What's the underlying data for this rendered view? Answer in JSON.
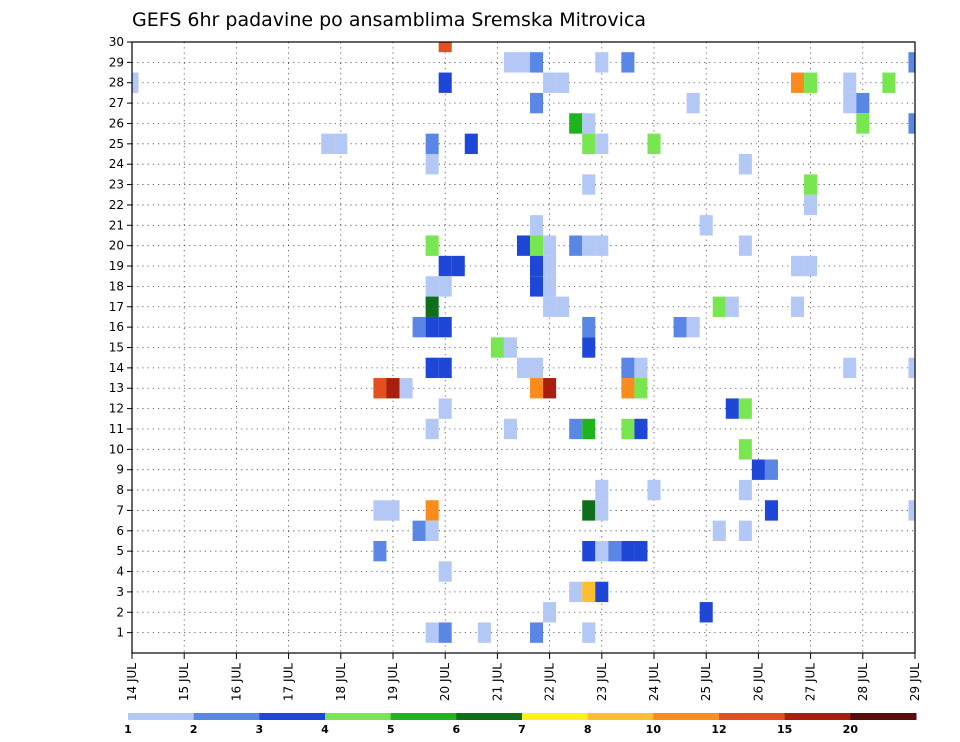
{
  "chart_data": {
    "type": "heatmap",
    "title": "GEFS 6hr padavine po ansamblima Sremska Mitrovica",
    "x_tick_labels": [
      "14 JUL",
      "15 JUL",
      "16 JUL",
      "17 JUL",
      "18 JUL",
      "19 JUL",
      "20 JUL",
      "21 JUL",
      "22 JUL",
      "23 JUL",
      "24 JUL",
      "25 JUL",
      "26 JUL",
      "27 JUL",
      "28 JUL",
      "29 JUL"
    ],
    "x_range_days": [
      14,
      29
    ],
    "y_tick_labels": [
      "1",
      "2",
      "3",
      "4",
      "5",
      "6",
      "7",
      "8",
      "9",
      "10",
      "11",
      "12",
      "13",
      "14",
      "15",
      "16",
      "17",
      "18",
      "19",
      "20",
      "21",
      "22",
      "23",
      "24",
      "25",
      "26",
      "27",
      "28",
      "29",
      "30"
    ],
    "y_range_members": [
      0,
      30
    ],
    "grid": "dotted",
    "colorbar": {
      "position": "bottom",
      "labels": [
        "1",
        "2",
        "3",
        "4",
        "5",
        "6",
        "7",
        "8",
        "10",
        "12",
        "15",
        "20"
      ],
      "colors": [
        "#b4c8f5",
        "#5a87e6",
        "#1e46d7",
        "#78e650",
        "#1eb41e",
        "#0f6e19",
        "#fff01e",
        "#ffbe32",
        "#fa8c1e",
        "#e1501e",
        "#aa1e0f",
        "#5a0a0a"
      ]
    },
    "cells": [
      {
        "m": 30,
        "d": 20.0,
        "c": 10
      },
      {
        "m": 29,
        "d": 21.25,
        "c": 1
      },
      {
        "m": 29,
        "d": 21.5,
        "c": 1
      },
      {
        "m": 29,
        "d": 21.75,
        "c": 2
      },
      {
        "m": 29,
        "d": 23.0,
        "c": 1
      },
      {
        "m": 29,
        "d": 23.5,
        "c": 2
      },
      {
        "m": 29,
        "d": 29.0,
        "c": 2
      },
      {
        "m": 28,
        "d": 14.0,
        "c": 1
      },
      {
        "m": 28,
        "d": 20.0,
        "c": 3
      },
      {
        "m": 28,
        "d": 22.0,
        "c": 1
      },
      {
        "m": 28,
        "d": 22.25,
        "c": 1
      },
      {
        "m": 28,
        "d": 26.75,
        "c": 9
      },
      {
        "m": 28,
        "d": 27.0,
        "c": 4
      },
      {
        "m": 28,
        "d": 27.75,
        "c": 1
      },
      {
        "m": 28,
        "d": 28.5,
        "c": 4
      },
      {
        "m": 27,
        "d": 21.75,
        "c": 2
      },
      {
        "m": 27,
        "d": 24.75,
        "c": 1
      },
      {
        "m": 27,
        "d": 27.75,
        "c": 1
      },
      {
        "m": 27,
        "d": 28.0,
        "c": 2
      },
      {
        "m": 26,
        "d": 22.5,
        "c": 5
      },
      {
        "m": 26,
        "d": 22.75,
        "c": 1
      },
      {
        "m": 26,
        "d": 28.0,
        "c": 4
      },
      {
        "m": 26,
        "d": 29.0,
        "c": 2
      },
      {
        "m": 25,
        "d": 17.75,
        "c": 1
      },
      {
        "m": 25,
        "d": 18.0,
        "c": 1
      },
      {
        "m": 25,
        "d": 19.75,
        "c": 2
      },
      {
        "m": 25,
        "d": 20.5,
        "c": 3
      },
      {
        "m": 25,
        "d": 22.75,
        "c": 4
      },
      {
        "m": 25,
        "d": 23.0,
        "c": 1
      },
      {
        "m": 25,
        "d": 24.0,
        "c": 4
      },
      {
        "m": 24,
        "d": 19.75,
        "c": 1
      },
      {
        "m": 24,
        "d": 25.75,
        "c": 1
      },
      {
        "m": 23,
        "d": 22.75,
        "c": 1
      },
      {
        "m": 23,
        "d": 27.0,
        "c": 4
      },
      {
        "m": 22,
        "d": 27.0,
        "c": 1
      },
      {
        "m": 21,
        "d": 21.75,
        "c": 1
      },
      {
        "m": 21,
        "d": 25.0,
        "c": 1
      },
      {
        "m": 20,
        "d": 19.75,
        "c": 4
      },
      {
        "m": 20,
        "d": 21.5,
        "c": 3
      },
      {
        "m": 20,
        "d": 21.75,
        "c": 4
      },
      {
        "m": 20,
        "d": 22.0,
        "c": 1
      },
      {
        "m": 20,
        "d": 22.5,
        "c": 2
      },
      {
        "m": 20,
        "d": 22.75,
        "c": 1
      },
      {
        "m": 20,
        "d": 23.0,
        "c": 1
      },
      {
        "m": 20,
        "d": 25.75,
        "c": 1
      },
      {
        "m": 19,
        "d": 20.0,
        "c": 3
      },
      {
        "m": 19,
        "d": 20.25,
        "c": 3
      },
      {
        "m": 19,
        "d": 21.75,
        "c": 3
      },
      {
        "m": 19,
        "d": 22.0,
        "c": 1
      },
      {
        "m": 19,
        "d": 26.75,
        "c": 1
      },
      {
        "m": 19,
        "d": 27.0,
        "c": 1
      },
      {
        "m": 18,
        "d": 19.75,
        "c": 1
      },
      {
        "m": 18,
        "d": 20.0,
        "c": 1
      },
      {
        "m": 18,
        "d": 21.75,
        "c": 3
      },
      {
        "m": 18,
        "d": 22.0,
        "c": 1
      },
      {
        "m": 17,
        "d": 19.75,
        "c": 6
      },
      {
        "m": 17,
        "d": 22.0,
        "c": 1
      },
      {
        "m": 17,
        "d": 22.25,
        "c": 1
      },
      {
        "m": 17,
        "d": 25.25,
        "c": 4
      },
      {
        "m": 17,
        "d": 25.5,
        "c": 1
      },
      {
        "m": 17,
        "d": 26.75,
        "c": 1
      },
      {
        "m": 16,
        "d": 19.5,
        "c": 2
      },
      {
        "m": 16,
        "d": 19.75,
        "c": 3
      },
      {
        "m": 16,
        "d": 20.0,
        "c": 3
      },
      {
        "m": 16,
        "d": 22.75,
        "c": 2
      },
      {
        "m": 16,
        "d": 24.5,
        "c": 2
      },
      {
        "m": 16,
        "d": 24.75,
        "c": 1
      },
      {
        "m": 15,
        "d": 21.0,
        "c": 4
      },
      {
        "m": 15,
        "d": 21.25,
        "c": 1
      },
      {
        "m": 15,
        "d": 22.75,
        "c": 3
      },
      {
        "m": 14,
        "d": 19.75,
        "c": 3
      },
      {
        "m": 14,
        "d": 20.0,
        "c": 3
      },
      {
        "m": 14,
        "d": 21.5,
        "c": 1
      },
      {
        "m": 14,
        "d": 21.75,
        "c": 1
      },
      {
        "m": 14,
        "d": 23.5,
        "c": 2
      },
      {
        "m": 14,
        "d": 23.75,
        "c": 1
      },
      {
        "m": 14,
        "d": 27.75,
        "c": 1
      },
      {
        "m": 14,
        "d": 29.0,
        "c": 1
      },
      {
        "m": 13,
        "d": 18.75,
        "c": 10
      },
      {
        "m": 13,
        "d": 19.0,
        "c": 11
      },
      {
        "m": 13,
        "d": 19.25,
        "c": 1
      },
      {
        "m": 13,
        "d": 21.75,
        "c": 9
      },
      {
        "m": 13,
        "d": 22.0,
        "c": 11
      },
      {
        "m": 13,
        "d": 23.5,
        "c": 9
      },
      {
        "m": 13,
        "d": 23.75,
        "c": 4
      },
      {
        "m": 12,
        "d": 20.0,
        "c": 1
      },
      {
        "m": 12,
        "d": 25.5,
        "c": 3
      },
      {
        "m": 12,
        "d": 25.75,
        "c": 4
      },
      {
        "m": 11,
        "d": 19.75,
        "c": 1
      },
      {
        "m": 11,
        "d": 21.25,
        "c": 1
      },
      {
        "m": 11,
        "d": 22.5,
        "c": 2
      },
      {
        "m": 11,
        "d": 22.75,
        "c": 5
      },
      {
        "m": 11,
        "d": 23.5,
        "c": 4
      },
      {
        "m": 11,
        "d": 23.75,
        "c": 3
      },
      {
        "m": 10,
        "d": 25.75,
        "c": 4
      },
      {
        "m": 9,
        "d": 26.0,
        "c": 3
      },
      {
        "m": 9,
        "d": 26.25,
        "c": 2
      },
      {
        "m": 8,
        "d": 23.0,
        "c": 1
      },
      {
        "m": 8,
        "d": 24.0,
        "c": 1
      },
      {
        "m": 8,
        "d": 25.75,
        "c": 1
      },
      {
        "m": 7,
        "d": 18.75,
        "c": 1
      },
      {
        "m": 7,
        "d": 19.0,
        "c": 1
      },
      {
        "m": 7,
        "d": 19.75,
        "c": 9
      },
      {
        "m": 7,
        "d": 22.75,
        "c": 6
      },
      {
        "m": 7,
        "d": 23.0,
        "c": 1
      },
      {
        "m": 7,
        "d": 26.25,
        "c": 3
      },
      {
        "m": 7,
        "d": 29.0,
        "c": 1
      },
      {
        "m": 6,
        "d": 19.5,
        "c": 2
      },
      {
        "m": 6,
        "d": 19.75,
        "c": 1
      },
      {
        "m": 6,
        "d": 25.25,
        "c": 1
      },
      {
        "m": 6,
        "d": 25.75,
        "c": 1
      },
      {
        "m": 5,
        "d": 18.75,
        "c": 2
      },
      {
        "m": 5,
        "d": 22.75,
        "c": 3
      },
      {
        "m": 5,
        "d": 23.0,
        "c": 1
      },
      {
        "m": 5,
        "d": 23.25,
        "c": 2
      },
      {
        "m": 5,
        "d": 23.5,
        "c": 3
      },
      {
        "m": 5,
        "d": 23.75,
        "c": 3
      },
      {
        "m": 4,
        "d": 20.0,
        "c": 1
      },
      {
        "m": 3,
        "d": 22.5,
        "c": 1
      },
      {
        "m": 3,
        "d": 22.75,
        "c": 8
      },
      {
        "m": 3,
        "d": 23.0,
        "c": 3
      },
      {
        "m": 2,
        "d": 22.0,
        "c": 1
      },
      {
        "m": 2,
        "d": 25.0,
        "c": 3
      },
      {
        "m": 1,
        "d": 19.75,
        "c": 1
      },
      {
        "m": 1,
        "d": 20.0,
        "c": 2
      },
      {
        "m": 1,
        "d": 20.75,
        "c": 1
      },
      {
        "m": 1,
        "d": 21.75,
        "c": 2
      },
      {
        "m": 1,
        "d": 22.75,
        "c": 1
      }
    ]
  }
}
